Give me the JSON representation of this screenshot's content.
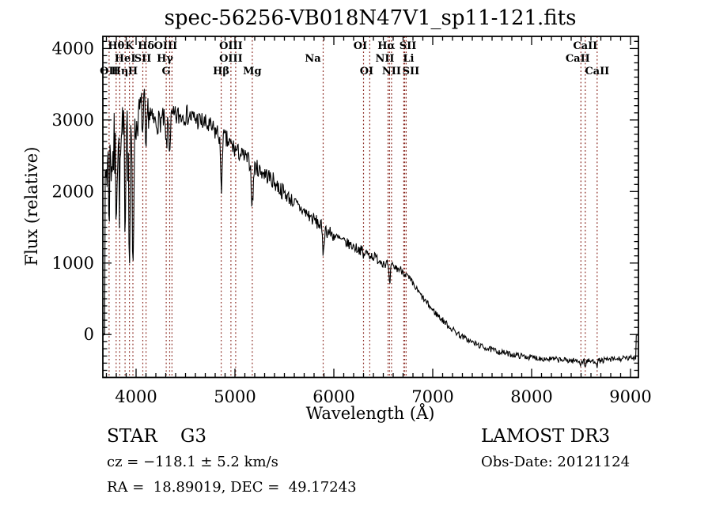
{
  "title": "spec-56256-VB018N47V1_sp11-121.fits",
  "colors": {
    "background": "#ffffff",
    "spectrum": "#000000",
    "frame": "#000000",
    "line_marker": "#8b2a22",
    "text": "#000000"
  },
  "axes": {
    "xlabel": "Wavelength (Å)",
    "ylabel": "Flux (relative)",
    "x_ticks": [
      4000,
      5000,
      6000,
      7000,
      8000,
      9000
    ],
    "y_ticks": [
      0,
      1000,
      2000,
      3000,
      4000
    ],
    "x_minor_step": 100,
    "y_minor_step": 100
  },
  "annotations": {
    "classification": "STAR    G3",
    "velocity": "cz = −118.1 ± 5.2 km/s",
    "coordinates": "RA =  18.89019, DEC =  49.17243",
    "survey": "LAMOST DR3",
    "obs_date": "Obs-Date: 20121124"
  },
  "spectral_lines": [
    {
      "label": "OII",
      "wavelength": 3727,
      "row": 3,
      "dx": 0
    },
    {
      "label": "Hθ",
      "wavelength": 3798,
      "row": 1,
      "dx": 0
    },
    {
      "label": "Hη",
      "wavelength": 3835,
      "row": 3,
      "dx": 0
    },
    {
      "label": "HeI",
      "wavelength": 3889,
      "row": 2,
      "dx": 0
    },
    {
      "label": "K",
      "wavelength": 3933,
      "row": 1,
      "dx": 0
    },
    {
      "label": "H",
      "wavelength": 3968,
      "row": 3,
      "dx": 0
    },
    {
      "label": "SII",
      "wavelength": 4068,
      "row": 2,
      "dx": 0
    },
    {
      "label": "Hδ",
      "wavelength": 4101,
      "row": 1,
      "dx": 0
    },
    {
      "label": "G",
      "wavelength": 4305,
      "row": 3,
      "dx": 0
    },
    {
      "label": "Hγ",
      "wavelength": 4340,
      "row": 2,
      "dx": -6
    },
    {
      "label": "OIII",
      "wavelength": 4363,
      "row": 1,
      "dx": -8
    },
    {
      "label": "Hβ",
      "wavelength": 4861,
      "row": 3,
      "dx": 0
    },
    {
      "label": "OIII",
      "wavelength": 4959,
      "row": 2,
      "dx": 0
    },
    {
      "label": "OIII",
      "wavelength": 5007,
      "row": 1,
      "dx": -6
    },
    {
      "label": "Mg",
      "wavelength": 5175,
      "row": 3,
      "dx": 0
    },
    {
      "label": "Na",
      "wavelength": 5892,
      "row": 2,
      "dx": -13
    },
    {
      "label": "OI",
      "wavelength": 6300,
      "row": 1,
      "dx": -4
    },
    {
      "label": "OI",
      "wavelength": 6363,
      "row": 3,
      "dx": -4
    },
    {
      "label": "NII",
      "wavelength": 6548,
      "row": 2,
      "dx": -4
    },
    {
      "label": "Hα",
      "wavelength": 6563,
      "row": 1,
      "dx": -4
    },
    {
      "label": "NII",
      "wavelength": 6583,
      "row": 3,
      "dx": 0
    },
    {
      "label": "Li",
      "wavelength": 6707,
      "row": 2,
      "dx": 6
    },
    {
      "label": "SII",
      "wavelength": 6716,
      "row": 1,
      "dx": 4
    },
    {
      "label": "SII",
      "wavelength": 6731,
      "row": 3,
      "dx": 6
    },
    {
      "label": "CaII",
      "wavelength": 8498,
      "row": 2,
      "dx": -4
    },
    {
      "label": "CaII",
      "wavelength": 8542,
      "row": 1,
      "dx": 0
    },
    {
      "label": "CaII",
      "wavelength": 8662,
      "row": 3,
      "dx": 0
    }
  ],
  "chart_data": {
    "type": "line",
    "title": "spec-56256-VB018N47V1_sp11-121.fits",
    "xlabel": "Wavelength (Å)",
    "ylabel": "Flux (relative)",
    "x_range": [
      3664,
      9080
    ],
    "y_range": [
      -600,
      4170
    ],
    "grid": false,
    "seed": 7,
    "edge_low_cut": 3686,
    "edge_high_cut": 9056,
    "edge_flux": 0,
    "continuum": [
      [
        3664,
        2100
      ],
      [
        3700,
        2350
      ],
      [
        3750,
        2500
      ],
      [
        3800,
        2580
      ],
      [
        3850,
        2620
      ],
      [
        3900,
        2700
      ],
      [
        3950,
        2720
      ],
      [
        4000,
        2880
      ],
      [
        4040,
        3150
      ],
      [
        4080,
        3230
      ],
      [
        4120,
        3150
      ],
      [
        4160,
        3000
      ],
      [
        4200,
        2960
      ],
      [
        4260,
        3000
      ],
      [
        4320,
        3010
      ],
      [
        4380,
        3030
      ],
      [
        4440,
        3060
      ],
      [
        4500,
        3080
      ],
      [
        4560,
        3040
      ],
      [
        4620,
        3000
      ],
      [
        4680,
        2960
      ],
      [
        4740,
        2900
      ],
      [
        4800,
        2840
      ],
      [
        4860,
        2780
      ],
      [
        4920,
        2700
      ],
      [
        4980,
        2620
      ],
      [
        5040,
        2540
      ],
      [
        5100,
        2480
      ],
      [
        5160,
        2400
      ],
      [
        5220,
        2330
      ],
      [
        5280,
        2270
      ],
      [
        5340,
        2210
      ],
      [
        5400,
        2130
      ],
      [
        5460,
        2030
      ],
      [
        5520,
        1950
      ],
      [
        5580,
        1870
      ],
      [
        5640,
        1790
      ],
      [
        5700,
        1720
      ],
      [
        5760,
        1650
      ],
      [
        5820,
        1580
      ],
      [
        5880,
        1510
      ],
      [
        5940,
        1440
      ],
      [
        6000,
        1380
      ],
      [
        6100,
        1300
      ],
      [
        6200,
        1230
      ],
      [
        6300,
        1160
      ],
      [
        6400,
        1090
      ],
      [
        6500,
        1010
      ],
      [
        6600,
        950
      ],
      [
        6700,
        890
      ],
      [
        6800,
        700
      ],
      [
        6900,
        510
      ],
      [
        7000,
        340
      ],
      [
        7100,
        200
      ],
      [
        7200,
        70
      ],
      [
        7300,
        -30
      ],
      [
        7400,
        -110
      ],
      [
        7500,
        -170
      ],
      [
        7600,
        -215
      ],
      [
        7700,
        -250
      ],
      [
        7800,
        -280
      ],
      [
        7900,
        -300
      ],
      [
        8000,
        -320
      ],
      [
        8100,
        -335
      ],
      [
        8200,
        -345
      ],
      [
        8300,
        -355
      ],
      [
        8400,
        -365
      ],
      [
        8500,
        -370
      ],
      [
        8600,
        -375
      ],
      [
        8700,
        -365
      ],
      [
        8800,
        -350
      ],
      [
        8900,
        -340
      ],
      [
        9000,
        -330
      ],
      [
        9080,
        -315
      ]
    ],
    "features": [
      {
        "center": 3727,
        "depth": -550,
        "sigma": 5
      },
      {
        "center": 3798,
        "depth": -650,
        "sigma": 5
      },
      {
        "center": 3835,
        "depth": -750,
        "sigma": 5
      },
      {
        "center": 3889,
        "depth": -850,
        "sigma": 5
      },
      {
        "center": 3908,
        "depth": 1500,
        "sigma": 2.2
      },
      {
        "center": 3933,
        "depth": -1650,
        "sigma": 7
      },
      {
        "center": 3968,
        "depth": -1650,
        "sigma": 7
      },
      {
        "center": 4068,
        "depth": -420,
        "sigma": 5
      },
      {
        "center": 4101,
        "depth": -800,
        "sigma": 6
      },
      {
        "center": 4305,
        "depth": -380,
        "sigma": 9
      },
      {
        "center": 4340,
        "depth": -420,
        "sigma": 6
      },
      {
        "center": 4861,
        "depth": -820,
        "sigma": 7
      },
      {
        "center": 5175,
        "depth": -580,
        "sigma": 9
      },
      {
        "center": 5892,
        "depth": -340,
        "sigma": 8
      },
      {
        "center": 6300,
        "depth": -90,
        "sigma": 5
      },
      {
        "center": 6563,
        "depth": -300,
        "sigma": 7
      },
      {
        "center": 8498,
        "depth": -60,
        "sigma": 5
      },
      {
        "center": 8542,
        "depth": -80,
        "sigma": 5
      },
      {
        "center": 8662,
        "depth": -60,
        "sigma": 5
      }
    ],
    "noise_profile": [
      [
        3664,
        3980,
        580
      ],
      [
        3980,
        4150,
        250
      ],
      [
        4150,
        4450,
        170
      ],
      [
        4450,
        5000,
        150
      ],
      [
        5000,
        5500,
        120
      ],
      [
        5500,
        6000,
        100
      ],
      [
        6000,
        6563,
        72
      ],
      [
        6563,
        6800,
        60
      ],
      [
        6800,
        7300,
        46
      ],
      [
        7300,
        9085,
        40
      ]
    ]
  }
}
